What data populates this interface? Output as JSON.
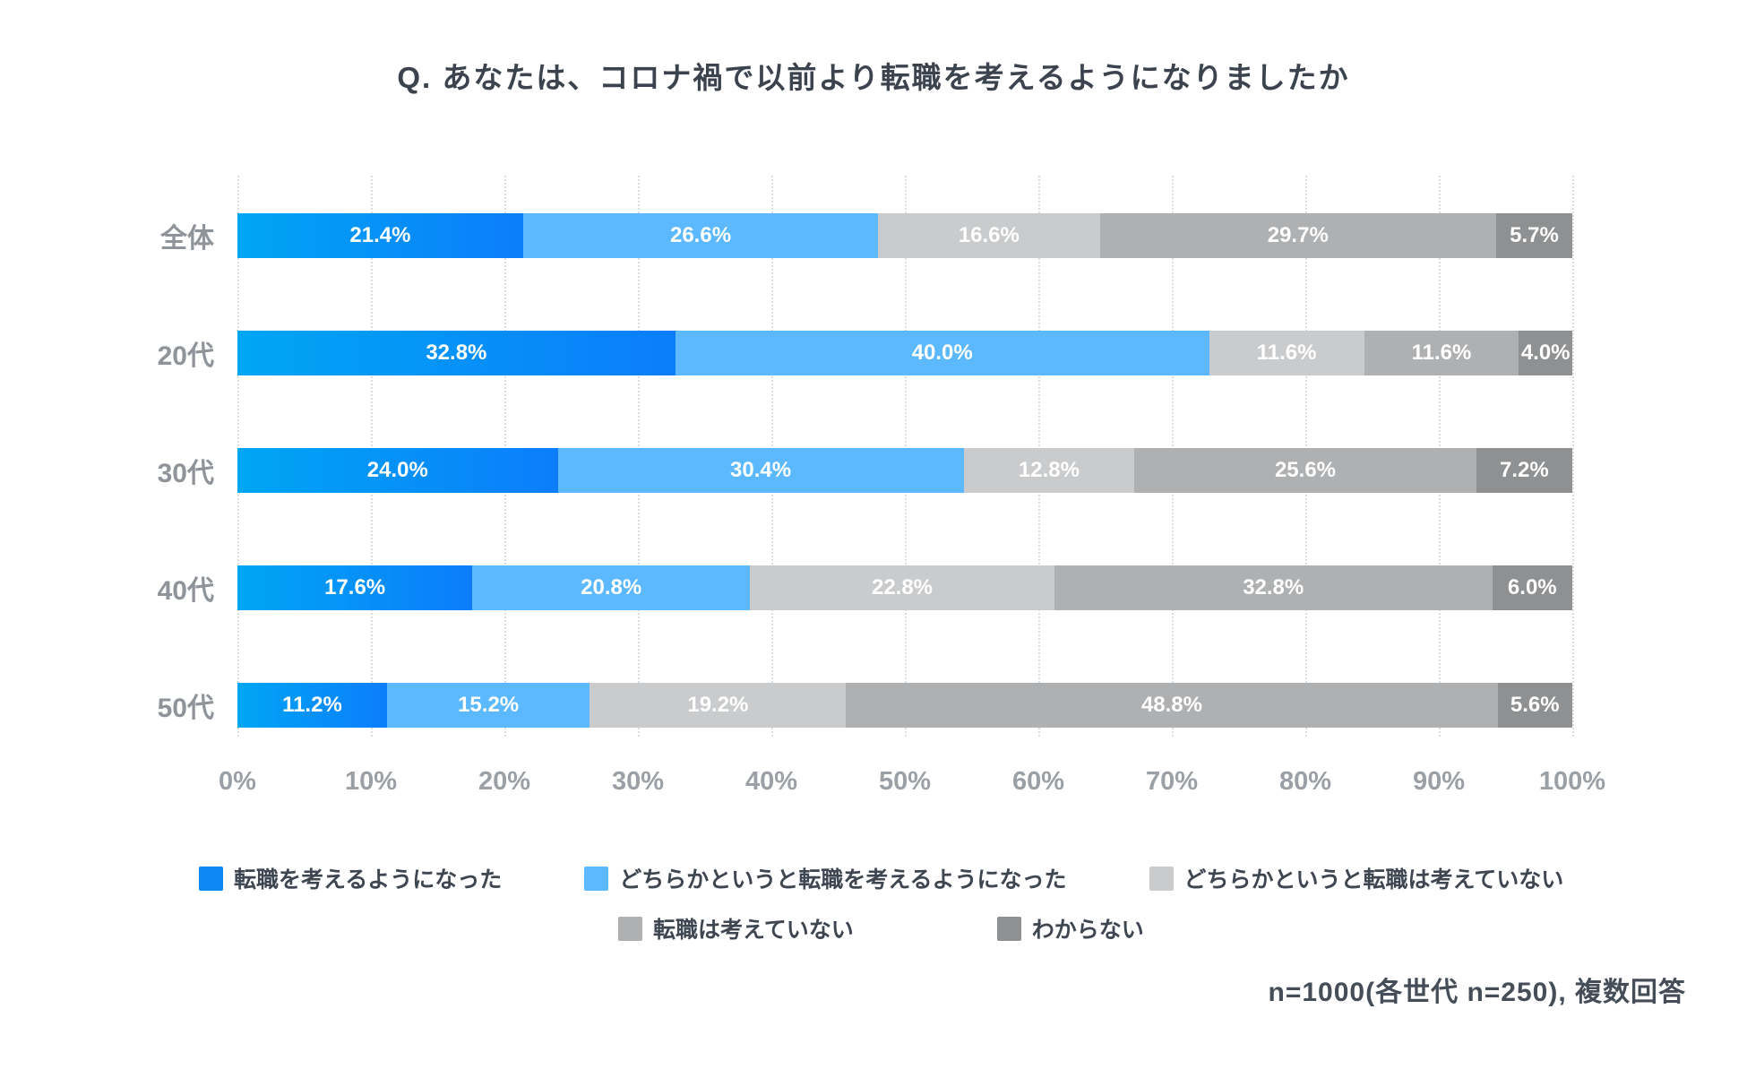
{
  "title": "Q. あなたは、コロナ禍で以前より転職を考えるようになりましたか",
  "footnote": "n=1000(各世代 n=250), 複数回答",
  "chart_data": {
    "type": "bar",
    "stacked": true,
    "orientation": "horizontal",
    "title": "Q. あなたは、コロナ禍で以前より転職を考えるようになりましたか",
    "categories": [
      "全体",
      "20代",
      "30代",
      "40代",
      "50代"
    ],
    "series": [
      {
        "name": "転職を考えるようになった",
        "color": "#0d87f2",
        "gradient": [
          "#00a6f4",
          "#0b7dfb"
        ],
        "values": [
          21.4,
          32.8,
          24.0,
          17.6,
          11.2
        ],
        "labels": [
          "21.4%",
          "32.8%",
          "24.0%",
          "17.6%",
          "11.2%"
        ]
      },
      {
        "name": "どちらかというと転職を考えるようになった",
        "color": "#5db9ff",
        "values": [
          26.6,
          40.0,
          30.4,
          20.8,
          15.2
        ],
        "labels": [
          "26.6%",
          "40.0%",
          "30.4%",
          "20.8%",
          "15.2%"
        ]
      },
      {
        "name": "どちらかというと転職は考えていない",
        "color": "#c9cbcd",
        "values": [
          16.6,
          11.6,
          12.8,
          22.8,
          19.2
        ],
        "labels": [
          "16.6%",
          "11.6%",
          "12.8%",
          "22.8%",
          "19.2%"
        ]
      },
      {
        "name": "転職は考えていない",
        "color": "#aeb0b2",
        "values": [
          29.7,
          11.6,
          25.6,
          32.8,
          48.8
        ],
        "labels": [
          "29.7%",
          "11.6%",
          "25.6%",
          "32.8%",
          "48.8%"
        ]
      },
      {
        "name": "わからない",
        "color": "#8e9092",
        "values": [
          5.7,
          4.0,
          7.2,
          6.0,
          5.6
        ],
        "labels": [
          "5.7%",
          "4.0%",
          "7.2%",
          "6.0%",
          "5.6%"
        ]
      }
    ],
    "x_ticks": [
      "0%",
      "10%",
      "20%",
      "30%",
      "40%",
      "50%",
      "60%",
      "70%",
      "80%",
      "90%",
      "100%"
    ],
    "xlim": [
      0,
      100
    ],
    "grid": "dotted-vertical",
    "legend_rows": [
      [
        0,
        1,
        2
      ],
      [
        3,
        4
      ]
    ],
    "sample_note": "n=1000(各世代 n=250), 複数回答"
  }
}
